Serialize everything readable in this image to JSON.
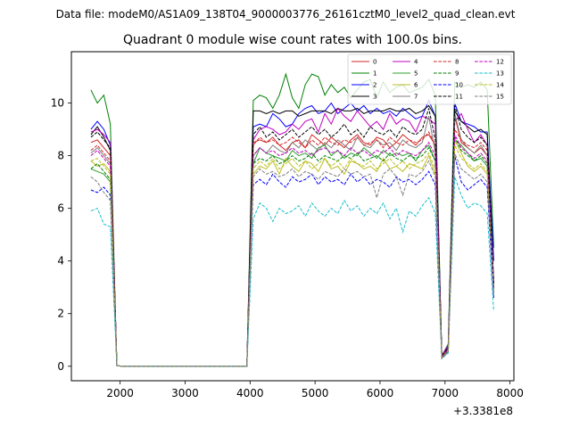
{
  "suptitle": "Data file: modeM0/AS1A09_138T04_9000003776_26161cztM0_level2_quad_clean.evt",
  "chart_data": {
    "type": "line",
    "title": "Quadrant 0 module wise count rates with 100.0s bins.",
    "xlabel": "",
    "ylabel": "",
    "x_offset_label": "+3.3381e8",
    "xlim": [
      1250,
      8060
    ],
    "ylim": [
      -0.55,
      11.95
    ],
    "xticks": [
      2000,
      3000,
      4000,
      5000,
      6000,
      7000,
      8000
    ],
    "yticks": [
      0,
      2,
      4,
      6,
      8,
      10
    ],
    "grid": false,
    "legend_position": "top-right",
    "x": [
      1550,
      1650,
      1750,
      1850,
      1950,
      2050,
      2150,
      2250,
      2350,
      2450,
      2550,
      2650,
      2750,
      2850,
      2950,
      3050,
      3150,
      3250,
      3350,
      3450,
      3550,
      3650,
      3750,
      3850,
      3950,
      4050,
      4150,
      4250,
      4350,
      4450,
      4550,
      4650,
      4750,
      4850,
      4950,
      5050,
      5150,
      5250,
      5350,
      5450,
      5550,
      5650,
      5750,
      5850,
      5950,
      6050,
      6150,
      6250,
      6350,
      6450,
      6550,
      6650,
      6750,
      6850,
      6950,
      7050,
      7150,
      7250,
      7350,
      7450,
      7550,
      7650,
      7750
    ],
    "series": [
      {
        "name": "0",
        "color": "#d62728",
        "dash": "solid",
        "values": [
          8.5,
          8.6,
          8.3,
          8.0,
          0.02,
          0,
          0,
          0,
          0,
          0,
          0,
          0,
          0,
          0,
          0,
          0,
          0,
          0,
          0,
          0,
          0,
          0,
          0,
          0,
          0,
          8.5,
          8.6,
          8.5,
          8.7,
          8.4,
          8.2,
          8.5,
          8.6,
          8.3,
          8.8,
          8.6,
          8.4,
          8.7,
          8.5,
          8.3,
          8.6,
          8.8,
          8.5,
          8.4,
          8.7,
          8.6,
          8.3,
          8.5,
          8.8,
          8.6,
          8.4,
          8.7,
          8.8,
          8.4,
          0.35,
          0.65,
          9.5,
          8.5,
          8.3,
          8.1,
          8.3,
          8.0,
          3.0
        ]
      },
      {
        "name": "1",
        "color": "#008000",
        "dash": "solid",
        "values": [
          10.5,
          10.0,
          10.3,
          9.2,
          0.02,
          0,
          0,
          0,
          0,
          0,
          0,
          0,
          0,
          0,
          0,
          0,
          0,
          0,
          0,
          0,
          0,
          0,
          0,
          0,
          0,
          10.1,
          10.3,
          10.2,
          9.8,
          10.3,
          11.1,
          10.2,
          9.8,
          10.7,
          11.1,
          11.0,
          10.3,
          10.7,
          10.4,
          10.6,
          10.2,
          10.5,
          10.8,
          10.9,
          10.2,
          10.8,
          10.4,
          10.6,
          10.7,
          10.4,
          10.5,
          10.6,
          10.9,
          10.3,
          0.4,
          0.85,
          10.8,
          10.6,
          10.7,
          10.6,
          10.8,
          10.5,
          4.5
        ]
      },
      {
        "name": "2",
        "color": "#0000ff",
        "dash": "solid",
        "values": [
          9.0,
          9.3,
          9.0,
          8.4,
          0.02,
          0,
          0,
          0,
          0,
          0,
          0,
          0,
          0,
          0,
          0,
          0,
          0,
          0,
          0,
          0,
          0,
          0,
          0,
          0,
          0,
          9.1,
          9.2,
          9.1,
          9.6,
          9.4,
          9.1,
          9.2,
          9.6,
          9.8,
          9.9,
          9.6,
          9.7,
          10.0,
          9.6,
          9.8,
          10.0,
          9.7,
          9.9,
          9.6,
          9.8,
          9.6,
          9.7,
          9.5,
          9.8,
          9.6,
          9.4,
          9.5,
          10.1,
          9.5,
          0.4,
          0.75,
          10.0,
          9.3,
          9.2,
          9.1,
          8.9,
          8.9,
          4.0
        ]
      },
      {
        "name": "3",
        "color": "#000000",
        "dash": "solid",
        "values": [
          8.8,
          9.1,
          8.7,
          8.2,
          0.02,
          0,
          0,
          0,
          0,
          0,
          0,
          0,
          0,
          0,
          0,
          0,
          0,
          0,
          0,
          0,
          0,
          0,
          0,
          0,
          0,
          9.7,
          9.7,
          9.6,
          9.7,
          9.6,
          9.7,
          9.7,
          9.5,
          9.6,
          9.7,
          9.7,
          9.7,
          9.6,
          9.8,
          9.7,
          9.7,
          9.8,
          9.6,
          9.7,
          9.7,
          9.7,
          9.8,
          9.7,
          9.7,
          9.8,
          9.6,
          9.7,
          9.9,
          9.5,
          0.4,
          0.7,
          9.7,
          9.3,
          9.1,
          8.9,
          9.0,
          8.8,
          3.2
        ]
      },
      {
        "name": "4",
        "color": "#bf00bf",
        "dash": "solid",
        "values": [
          8.9,
          9.0,
          8.8,
          8.5,
          0.02,
          0,
          0,
          0,
          0,
          0,
          0,
          0,
          0,
          0,
          0,
          0,
          0,
          0,
          0,
          0,
          0,
          0,
          0,
          0,
          0,
          8.6,
          9.0,
          9.1,
          9.0,
          8.8,
          8.9,
          9.2,
          9.0,
          9.3,
          9.4,
          8.9,
          9.6,
          9.2,
          9.8,
          9.5,
          9.3,
          9.7,
          9.4,
          9.1,
          9.3,
          9.0,
          9.6,
          9.2,
          9.4,
          9.3,
          8.9,
          9.5,
          9.4,
          9.2,
          0.4,
          0.8,
          9.3,
          9.6,
          9.0,
          8.5,
          8.8,
          8.4,
          3.1
        ]
      },
      {
        "name": "5",
        "color": "#2ca02c",
        "dash": "solid",
        "values": [
          7.5,
          7.4,
          7.3,
          7.0,
          0.02,
          0,
          0,
          0,
          0,
          0,
          0,
          0,
          0,
          0,
          0,
          0,
          0,
          0,
          0,
          0,
          0,
          0,
          0,
          0,
          0,
          7.7,
          8.3,
          8.1,
          8.0,
          7.9,
          7.8,
          8.2,
          8.0,
          8.1,
          7.9,
          8.3,
          8.4,
          8.0,
          8.2,
          7.9,
          8.1,
          8.0,
          8.3,
          8.1,
          7.9,
          8.2,
          8.0,
          8.1,
          8.0,
          8.1,
          7.8,
          8.2,
          8.4,
          7.8,
          0.35,
          0.65,
          8.6,
          8.4,
          8.1,
          7.8,
          7.9,
          7.6,
          3.0
        ]
      },
      {
        "name": "6",
        "color": "#bcbd22",
        "dash": "solid",
        "values": [
          7.8,
          7.6,
          7.7,
          7.4,
          0.02,
          0,
          0,
          0,
          0,
          0,
          0,
          0,
          0,
          0,
          0,
          0,
          0,
          0,
          0,
          0,
          0,
          0,
          0,
          0,
          0,
          7.3,
          7.6,
          7.5,
          7.8,
          7.3,
          7.9,
          7.6,
          7.4,
          7.8,
          7.7,
          7.4,
          7.9,
          7.5,
          7.6,
          7.3,
          7.8,
          7.7,
          7.5,
          7.6,
          7.4,
          7.9,
          7.5,
          7.6,
          7.4,
          7.7,
          7.6,
          7.5,
          8.0,
          7.3,
          0.3,
          0.6,
          8.6,
          8.1,
          7.6,
          7.4,
          7.6,
          7.3,
          2.8
        ]
      },
      {
        "name": "7",
        "color": "#7f7f7f",
        "dash": "solid",
        "values": [
          8.1,
          8.3,
          8.0,
          7.7,
          0.02,
          0,
          0,
          0,
          0,
          0,
          0,
          0,
          0,
          0,
          0,
          0,
          0,
          0,
          0,
          0,
          0,
          0,
          0,
          0,
          0,
          8.0,
          8.3,
          8.1,
          8.4,
          8.2,
          8.1,
          8.5,
          8.3,
          8.6,
          8.4,
          8.2,
          8.5,
          8.3,
          8.6,
          8.4,
          8.2,
          8.7,
          8.4,
          8.3,
          8.6,
          8.4,
          8.5,
          8.2,
          8.6,
          8.4,
          8.3,
          8.5,
          9.5,
          8.1,
          0.35,
          0.7,
          9.6,
          8.6,
          8.3,
          8.1,
          8.4,
          8.0,
          3.1
        ]
      },
      {
        "name": "8",
        "color": "#d62728",
        "dash": "dashed",
        "values": [
          8.2,
          8.4,
          8.1,
          7.8,
          0.02,
          0,
          0,
          0,
          0,
          0,
          0,
          0,
          0,
          0,
          0,
          0,
          0,
          0,
          0,
          0,
          0,
          0,
          0,
          0,
          0,
          8.4,
          8.7,
          8.5,
          8.6,
          8.4,
          8.5,
          8.7,
          8.5,
          8.3,
          8.6,
          8.4,
          8.7,
          8.5,
          8.4,
          8.6,
          8.5,
          8.7,
          8.4,
          8.5,
          8.6,
          8.3,
          8.7,
          8.5,
          8.4,
          8.6,
          8.5,
          8.6,
          8.9,
          8.4,
          0.35,
          0.65,
          9.0,
          8.6,
          8.4,
          8.3,
          8.5,
          8.2,
          3.0
        ]
      },
      {
        "name": "9",
        "color": "#008000",
        "dash": "dashed",
        "values": [
          7.5,
          7.7,
          7.4,
          7.1,
          0.02,
          0,
          0,
          0,
          0,
          0,
          0,
          0,
          0,
          0,
          0,
          0,
          0,
          0,
          0,
          0,
          0,
          0,
          0,
          0,
          0,
          7.7,
          7.9,
          7.8,
          8.0,
          7.7,
          7.8,
          8.0,
          7.8,
          7.9,
          8.1,
          7.8,
          8.0,
          7.9,
          7.8,
          8.0,
          7.9,
          8.1,
          7.8,
          7.9,
          8.0,
          7.8,
          8.1,
          7.9,
          7.8,
          8.0,
          7.9,
          8.0,
          8.3,
          7.8,
          0.35,
          0.6,
          8.7,
          8.2,
          8.0,
          7.8,
          8.0,
          7.7,
          2.9
        ]
      },
      {
        "name": "10",
        "color": "#0000ff",
        "dash": "dashed",
        "values": [
          6.7,
          6.6,
          6.8,
          6.5,
          0.02,
          0,
          0,
          0,
          0,
          0,
          0,
          0,
          0,
          0,
          0,
          0,
          0,
          0,
          0,
          0,
          0,
          0,
          0,
          0,
          0,
          6.9,
          7.1,
          6.9,
          7.3,
          7.0,
          6.8,
          7.2,
          7.0,
          7.1,
          7.3,
          6.9,
          7.2,
          7.0,
          7.1,
          6.9,
          7.3,
          7.0,
          7.2,
          6.9,
          7.1,
          7.0,
          6.8,
          7.2,
          7.0,
          7.1,
          6.9,
          7.1,
          7.4,
          6.9,
          0.3,
          0.55,
          8.0,
          7.0,
          6.7,
          6.9,
          7.1,
          6.8,
          2.6
        ]
      },
      {
        "name": "11",
        "color": "#000000",
        "dash": "dashed",
        "values": [
          8.7,
          8.9,
          8.6,
          8.3,
          0.02,
          0,
          0,
          0,
          0,
          0,
          0,
          0,
          0,
          0,
          0,
          0,
          0,
          0,
          0,
          0,
          0,
          0,
          0,
          0,
          0,
          8.8,
          9.1,
          8.7,
          8.9,
          8.6,
          8.8,
          9.0,
          8.7,
          8.9,
          9.1,
          8.8,
          9.0,
          8.7,
          8.9,
          9.2,
          8.8,
          9.0,
          8.7,
          9.1,
          8.9,
          8.8,
          9.0,
          8.7,
          9.1,
          8.9,
          8.8,
          9.0,
          9.8,
          8.6,
          0.4,
          0.7,
          9.9,
          9.0,
          8.7,
          8.5,
          8.7,
          8.4,
          3.1
        ]
      },
      {
        "name": "12",
        "color": "#bf00bf",
        "dash": "dashed",
        "values": [
          8.0,
          8.2,
          7.9,
          7.6,
          0.02,
          0,
          0,
          0,
          0,
          0,
          0,
          0,
          0,
          0,
          0,
          0,
          0,
          0,
          0,
          0,
          0,
          0,
          0,
          0,
          0,
          8.0,
          8.3,
          8.1,
          8.2,
          8.0,
          8.1,
          8.3,
          8.1,
          8.2,
          8.0,
          8.2,
          8.3,
          8.1,
          8.2,
          8.0,
          8.3,
          8.1,
          8.2,
          8.0,
          8.2,
          8.1,
          8.3,
          8.0,
          8.2,
          8.1,
          8.0,
          8.2,
          8.5,
          8.0,
          0.35,
          0.65,
          8.8,
          8.3,
          8.1,
          7.9,
          8.1,
          7.8,
          3.0
        ]
      },
      {
        "name": "13",
        "color": "#17becf",
        "dash": "dashed",
        "values": [
          5.9,
          6.0,
          5.4,
          5.3,
          0.02,
          0,
          0,
          0,
          0,
          0,
          0,
          0,
          0,
          0,
          0,
          0,
          0,
          0,
          0,
          0,
          0,
          0,
          0,
          0,
          0,
          5.6,
          6.2,
          6.0,
          5.5,
          6.0,
          5.8,
          5.9,
          6.1,
          5.7,
          6.2,
          5.9,
          5.7,
          6.0,
          5.8,
          6.3,
          5.9,
          6.1,
          5.7,
          6.0,
          5.8,
          6.2,
          5.6,
          6.0,
          5.1,
          5.9,
          5.7,
          6.1,
          6.4,
          5.8,
          0.3,
          0.5,
          7.2,
          6.5,
          6.0,
          6.2,
          6.1,
          5.8,
          2.1
        ]
      },
      {
        "name": "14",
        "color": "#bcbd22",
        "dash": "dashed",
        "values": [
          7.8,
          7.9,
          7.6,
          7.3,
          0.02,
          0,
          0,
          0,
          0,
          0,
          0,
          0,
          0,
          0,
          0,
          0,
          0,
          0,
          0,
          0,
          0,
          0,
          0,
          0,
          0,
          7.5,
          7.8,
          7.6,
          7.9,
          7.5,
          7.7,
          7.9,
          7.6,
          7.8,
          7.5,
          7.7,
          7.9,
          7.6,
          7.8,
          7.5,
          7.9,
          7.7,
          7.6,
          7.8,
          7.5,
          7.7,
          7.9,
          7.6,
          7.8,
          7.5,
          7.7,
          7.8,
          8.1,
          7.5,
          0.3,
          0.6,
          8.4,
          7.9,
          7.7,
          7.5,
          7.7,
          7.4,
          2.8
        ]
      },
      {
        "name": "15",
        "color": "#7f7f7f",
        "dash": "dashed",
        "values": [
          7.2,
          7.0,
          6.6,
          6.3,
          0.02,
          0,
          0,
          0,
          0,
          0,
          0,
          0,
          0,
          0,
          0,
          0,
          0,
          0,
          0,
          0,
          0,
          0,
          0,
          0,
          0,
          7.2,
          7.5,
          7.3,
          7.4,
          7.2,
          7.3,
          7.5,
          7.2,
          7.4,
          7.3,
          7.1,
          7.4,
          7.3,
          7.2,
          7.5,
          7.3,
          7.4,
          7.2,
          7.3,
          6.4,
          7.3,
          7.5,
          7.2,
          6.5,
          7.3,
          7.2,
          7.4,
          7.8,
          7.2,
          0.3,
          0.55,
          8.1,
          7.5,
          7.3,
          7.1,
          7.3,
          7.0,
          2.7
        ]
      }
    ]
  }
}
